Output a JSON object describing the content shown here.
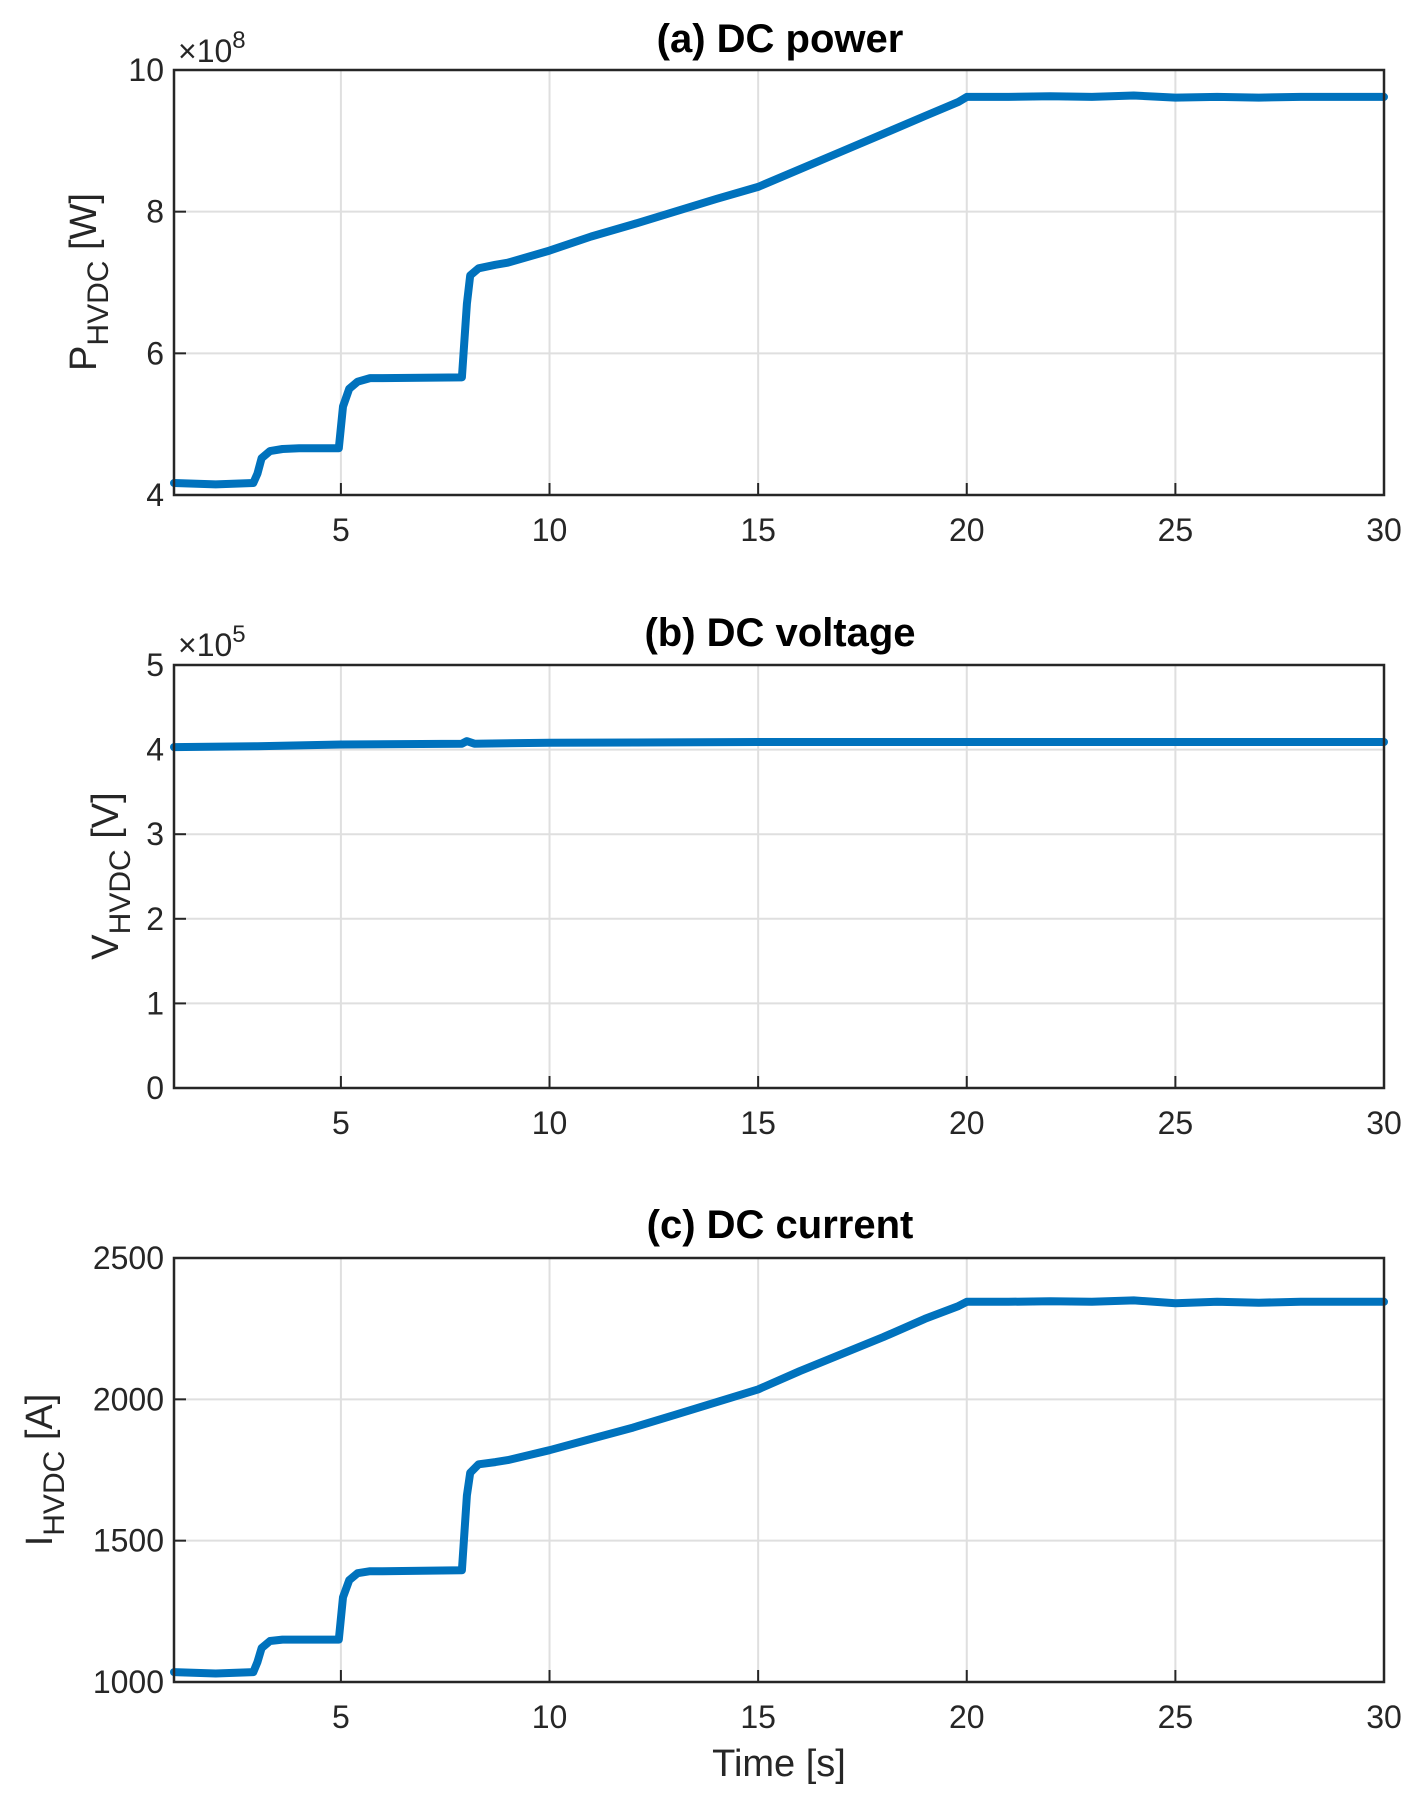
{
  "colors": {
    "series": "#0072BD"
  },
  "chart_data": [
    {
      "type": "line",
      "title": "(a) DC power",
      "ylabel_main": "P",
      "ylabel_sub": "HVDC",
      "ylabel_unit": " [W]",
      "xlabel": "",
      "exponent_base": "×10",
      "exponent_power": "8",
      "xlim": [
        1,
        30
      ],
      "ylim": [
        4,
        10
      ],
      "xticks": [
        5,
        10,
        15,
        20,
        25,
        30
      ],
      "xtick_labels": [
        "5",
        "10",
        "15",
        "20",
        "25",
        "30"
      ],
      "yticks": [
        4,
        6,
        8,
        10
      ],
      "ytick_labels": [
        "4",
        "6",
        "8",
        "10"
      ],
      "series": [
        {
          "name": "P_HVDC",
          "x": [
            1,
            2,
            2.9,
            3,
            3.1,
            3.3,
            3.6,
            4,
            4.95,
            5.05,
            5.2,
            5.4,
            5.7,
            6,
            7.9,
            8.02,
            8.1,
            8.3,
            8.7,
            9,
            10,
            11,
            12,
            13,
            14,
            15,
            16,
            17,
            18,
            19,
            19.8,
            20,
            21,
            22,
            23,
            24,
            25,
            26,
            27,
            28,
            29,
            30
          ],
          "values": [
            4.17,
            4.15,
            4.17,
            4.3,
            4.52,
            4.62,
            4.65,
            4.66,
            4.66,
            5.25,
            5.5,
            5.6,
            5.65,
            5.65,
            5.66,
            6.7,
            7.1,
            7.2,
            7.25,
            7.28,
            7.45,
            7.65,
            7.82,
            8.0,
            8.18,
            8.35,
            8.6,
            8.85,
            9.1,
            9.35,
            9.55,
            9.62,
            9.62,
            9.63,
            9.62,
            9.64,
            9.61,
            9.62,
            9.61,
            9.62,
            9.62,
            9.62
          ]
        }
      ]
    },
    {
      "type": "line",
      "title": "(b) DC voltage",
      "ylabel_main": "V",
      "ylabel_sub": "HVDC",
      "ylabel_unit": " [V]",
      "xlabel": "",
      "exponent_base": "×10",
      "exponent_power": "5",
      "xlim": [
        1,
        30
      ],
      "ylim": [
        0,
        5
      ],
      "xticks": [
        5,
        10,
        15,
        20,
        25,
        30
      ],
      "xtick_labels": [
        "5",
        "10",
        "15",
        "20",
        "25",
        "30"
      ],
      "yticks": [
        0,
        1,
        2,
        3,
        4,
        5
      ],
      "ytick_labels": [
        "0",
        "1",
        "2",
        "3",
        "4",
        "5"
      ],
      "series": [
        {
          "name": "V_HVDC",
          "x": [
            1,
            3,
            5,
            7.9,
            8.02,
            8.2,
            10,
            15,
            20,
            25,
            30
          ],
          "values": [
            4.03,
            4.04,
            4.06,
            4.07,
            4.1,
            4.07,
            4.08,
            4.09,
            4.09,
            4.09,
            4.09
          ]
        }
      ]
    },
    {
      "type": "line",
      "title": "(c) DC current",
      "ylabel_main": "I",
      "ylabel_sub": "HVDC",
      "ylabel_unit": " [A]",
      "xlabel": "Time [s]",
      "exponent_base": "",
      "exponent_power": "",
      "xlim": [
        1,
        30
      ],
      "ylim": [
        1000,
        2500
      ],
      "xticks": [
        5,
        10,
        15,
        20,
        25,
        30
      ],
      "xtick_labels": [
        "5",
        "10",
        "15",
        "20",
        "25",
        "30"
      ],
      "yticks": [
        1000,
        1500,
        2000,
        2500
      ],
      "ytick_labels": [
        "1000",
        "1500",
        "2000",
        "2500"
      ],
      "series": [
        {
          "name": "I_HVDC",
          "x": [
            1,
            2,
            2.9,
            3,
            3.1,
            3.3,
            3.6,
            4,
            4.95,
            5.05,
            5.2,
            5.4,
            5.7,
            6,
            7.9,
            8.02,
            8.1,
            8.3,
            8.7,
            9,
            10,
            11,
            12,
            13,
            14,
            15,
            16,
            17,
            18,
            19,
            19.8,
            20,
            21,
            22,
            23,
            24,
            25,
            26,
            27,
            28,
            29,
            30
          ],
          "values": [
            1035,
            1030,
            1035,
            1070,
            1120,
            1145,
            1150,
            1150,
            1150,
            1300,
            1360,
            1385,
            1392,
            1392,
            1395,
            1660,
            1740,
            1770,
            1778,
            1785,
            1820,
            1860,
            1900,
            1945,
            1990,
            2035,
            2100,
            2160,
            2220,
            2285,
            2330,
            2345,
            2345,
            2347,
            2345,
            2350,
            2340,
            2345,
            2342,
            2345,
            2345,
            2345
          ]
        }
      ]
    }
  ]
}
